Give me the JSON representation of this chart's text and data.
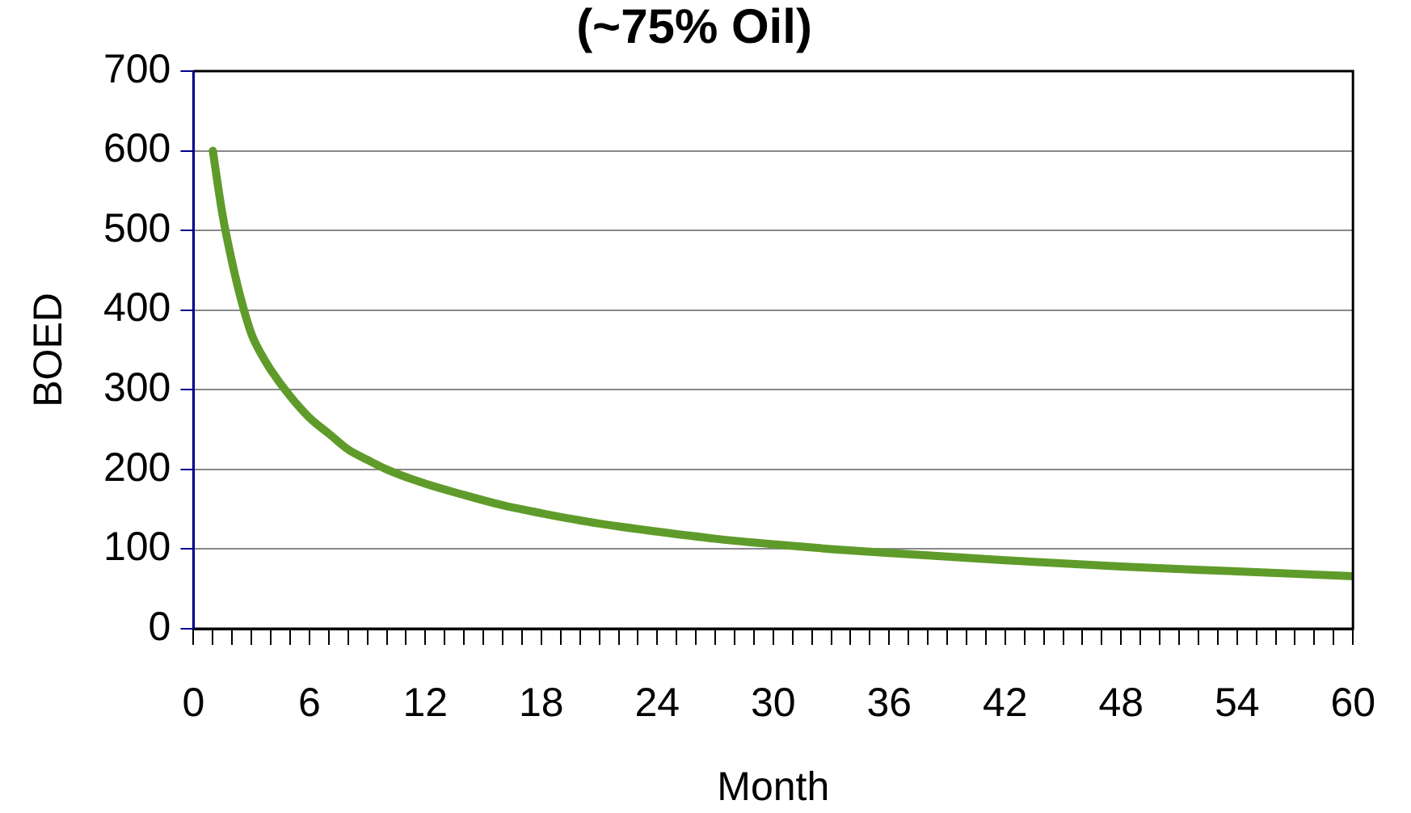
{
  "chart_data": {
    "type": "line",
    "title": "(~75% Oil)",
    "xlabel": "Month",
    "ylabel": "BOED",
    "x": [
      1,
      1.5,
      2,
      2.5,
      3,
      3.5,
      4,
      5,
      6,
      7,
      8,
      9,
      10,
      12,
      14,
      16,
      18,
      21,
      24,
      27,
      30,
      33,
      36,
      42,
      48,
      54,
      60
    ],
    "series": [
      {
        "color": "#5f9b2a",
        "values": [
          600,
          520,
          460,
          410,
          370,
          345,
          325,
          292,
          265,
          245,
          225,
          212,
          200,
          182,
          168,
          155,
          145,
          132,
          122,
          113,
          106,
          100,
          95,
          86,
          78,
          72,
          66
        ]
      }
    ],
    "xlim": [
      0,
      60
    ],
    "xticks": [
      0,
      {
        "value": 1,
        "label": null
      },
      {
        "value": 2,
        "label": null
      },
      {
        "value": 3,
        "label": null
      },
      {
        "value": 4,
        "label": null
      },
      {
        "value": 5,
        "label": null
      },
      6,
      {
        "value": 7,
        "label": null
      },
      {
        "value": 8,
        "label": null
      },
      {
        "value": 9,
        "label": null
      },
      {
        "value": 10,
        "label": null
      },
      {
        "value": 11,
        "label": null
      },
      12,
      {
        "value": 13,
        "label": null
      },
      {
        "value": 14,
        "label": null
      },
      {
        "value": 15,
        "label": null
      },
      {
        "value": 16,
        "label": null
      },
      {
        "value": 17,
        "label": null
      },
      18,
      {
        "value": 19,
        "label": null
      },
      {
        "value": 20,
        "label": null
      },
      {
        "value": 21,
        "label": null
      },
      {
        "value": 22,
        "label": null
      },
      {
        "value": 23,
        "label": null
      },
      24,
      {
        "value": 25,
        "label": null
      },
      {
        "value": 26,
        "label": null
      },
      {
        "value": 27,
        "label": null
      },
      {
        "value": 28,
        "label": null
      },
      {
        "value": 29,
        "label": null
      },
      30,
      {
        "value": 31,
        "label": null
      },
      {
        "value": 32,
        "label": null
      },
      {
        "value": 33,
        "label": null
      },
      {
        "value": 34,
        "label": null
      },
      {
        "value": 35,
        "label": null
      },
      36,
      {
        "value": 37,
        "label": null
      },
      {
        "value": 38,
        "label": null
      },
      {
        "value": 39,
        "label": null
      },
      {
        "value": 40,
        "label": null
      },
      {
        "value": 41,
        "label": null
      },
      42,
      {
        "value": 43,
        "label": null
      },
      {
        "value": 44,
        "label": null
      },
      {
        "value": 45,
        "label": null
      },
      {
        "value": 46,
        "label": null
      },
      {
        "value": 47,
        "label": null
      },
      48,
      {
        "value": 49,
        "label": null
      },
      {
        "value": 50,
        "label": null
      },
      {
        "value": 51,
        "label": null
      },
      {
        "value": 52,
        "label": null
      },
      {
        "value": 53,
        "label": null
      },
      54,
      {
        "value": 55,
        "label": null
      },
      {
        "value": 56,
        "label": null
      },
      {
        "value": 57,
        "label": null
      },
      {
        "value": 58,
        "label": null
      },
      {
        "value": 59,
        "label": null
      },
      60
    ],
    "ylim": [
      0,
      700
    ],
    "yticks": [
      0,
      100,
      200,
      300,
      400,
      500,
      600,
      700
    ],
    "grid": "y",
    "legend": false,
    "marker": "none",
    "line_style": "solid"
  }
}
